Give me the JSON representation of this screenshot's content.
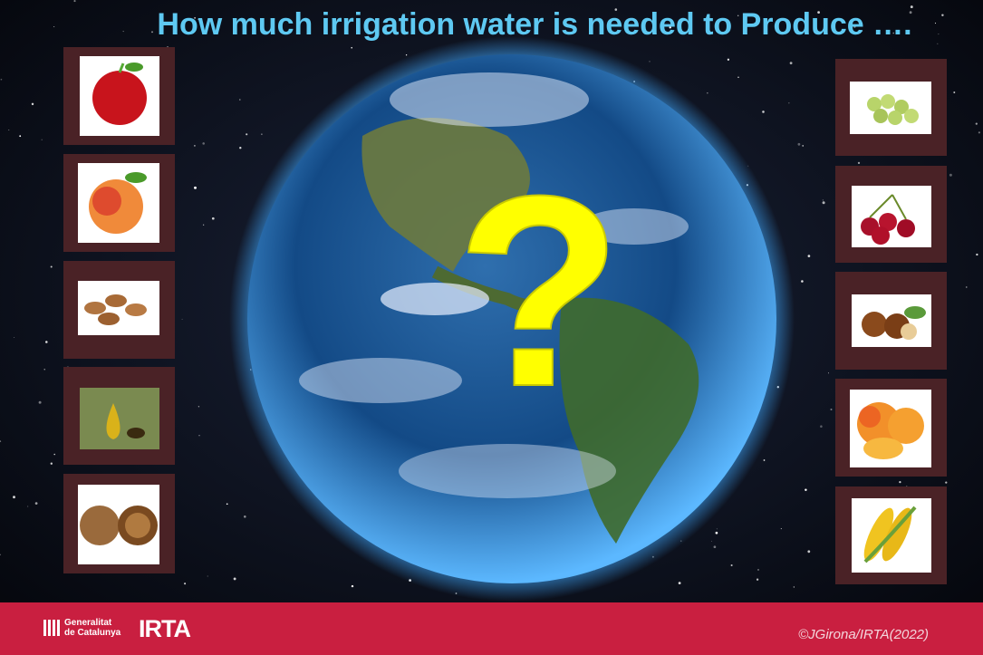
{
  "title": "How much irrigation water is needed to Produce ….",
  "question_mark": "?",
  "footer": {
    "logo_line1": "Generalitat",
    "logo_line2": "de Catalunya",
    "brand": "IRTA",
    "credit": "©JGirona/IRTA(2022)"
  }
}
